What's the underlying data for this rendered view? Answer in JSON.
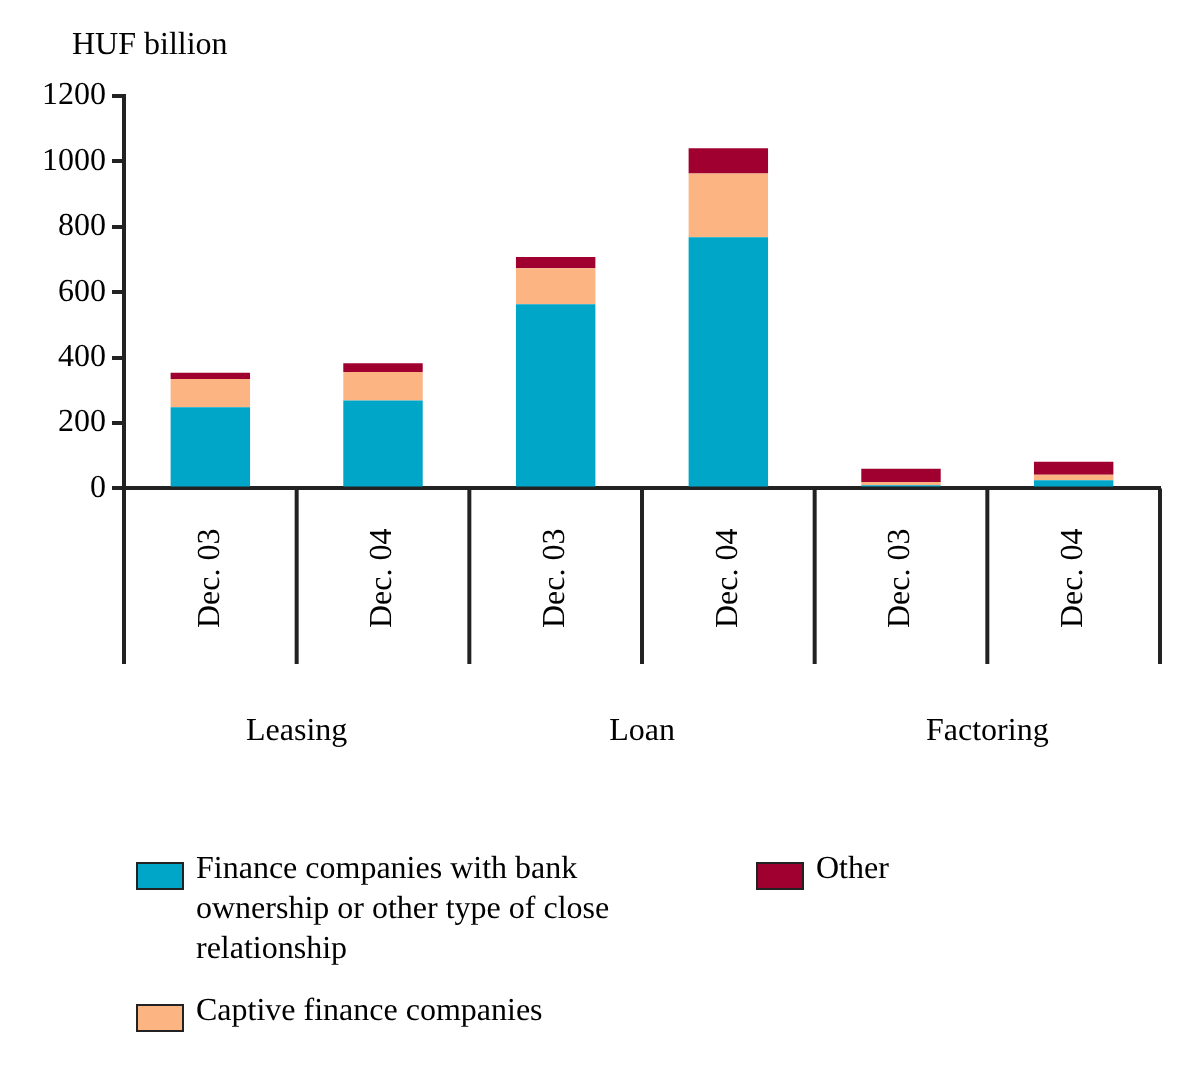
{
  "chart_data": {
    "type": "bar",
    "ylabel": "HUF billion",
    "categories": [
      "Dec. 03",
      "Dec. 04",
      "Dec. 03",
      "Dec. 04",
      "Dec. 03",
      "Dec. 04"
    ],
    "annotations": [
      "Leasing",
      "Loan",
      "Factoring"
    ],
    "stacked": true,
    "series": [
      {
        "name": "Finance companies with bank ownership or other type of close relationship",
        "color": "#00a6c8",
        "values": [
          248,
          269,
          563,
          768,
          10,
          25
        ]
      },
      {
        "name": "Captive finance companies",
        "color": "#fbb482",
        "values": [
          87,
          87,
          110,
          195,
          10,
          17
        ]
      },
      {
        "name": "Other",
        "color": "#a0002f",
        "values": [
          19,
          27,
          35,
          77,
          40,
          40
        ]
      }
    ],
    "ylim": [
      0,
      1200
    ],
    "yticks": [
      0,
      200,
      400,
      600,
      800,
      1000,
      1200
    ],
    "grid": false,
    "legend": "bottom"
  }
}
